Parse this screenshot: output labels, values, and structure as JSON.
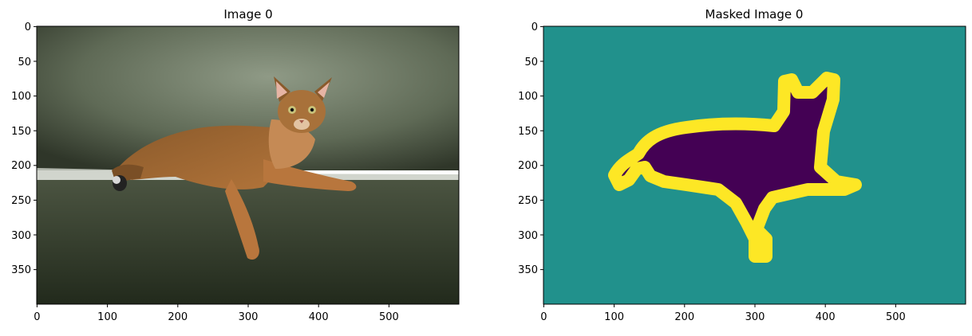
{
  "colors": {
    "wall_dark": "#3f4838",
    "wall_light": "#8a9480",
    "couch": "#3c4433",
    "couch_edge": "#c9cec4",
    "cat_body": "#8a5a2b",
    "cat_light": "#c58a55",
    "mask_background": "#21918c",
    "mask_object": "#440154",
    "mask_boundary": "#fde725"
  },
  "panels": [
    {
      "title": "Image 0",
      "xticks": [
        "0",
        "100",
        "200",
        "300",
        "400",
        "500"
      ],
      "yticks": [
        "0",
        "50",
        "100",
        "150",
        "200",
        "250",
        "300",
        "350"
      ]
    },
    {
      "title": "Masked Image 0",
      "xticks": [
        "0",
        "100",
        "200",
        "300",
        "400",
        "500"
      ],
      "yticks": [
        "0",
        "50",
        "100",
        "150",
        "200",
        "250",
        "300",
        "350"
      ]
    }
  ]
}
